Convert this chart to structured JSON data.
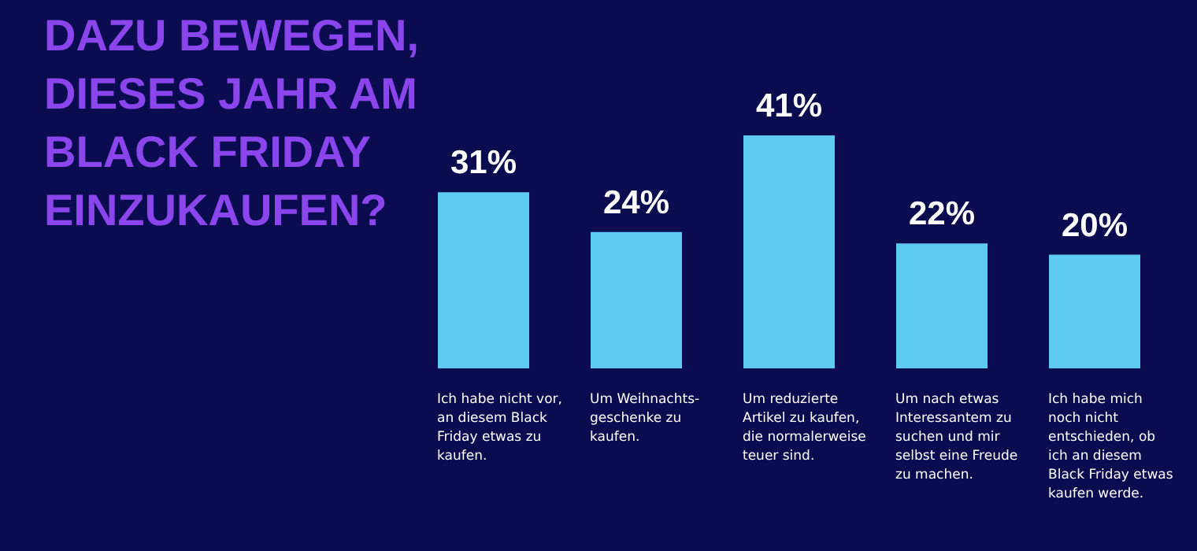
{
  "chart_data": {
    "type": "bar",
    "title": "DAZU BEWEGEN,\nDIESES JAHR AM\nBLACK FRIDAY\nEINZUKAUFEN?",
    "categories": [
      "Ich habe nicht vor,\nan diesem Black\nFriday etwas zu\nkaufen.",
      "Um Weihnachts-\ngeschenke zu\nkaufen.",
      "Um reduzierte\nArtikel zu kaufen,\ndie normalerweise\nteuer sind.",
      "Um nach etwas\nInteressantem zu\nsuchen und mir\nselbst eine Freude\nzu machen.",
      "Ich habe mich\nnoch nicht\nentschieden, ob\nich an diesem\nBlack Friday etwas\nkaufen werde."
    ],
    "values": [
      31,
      24,
      41,
      22,
      20
    ],
    "value_labels": [
      "31%",
      "24%",
      "41%",
      "22%",
      "20%"
    ],
    "color": "#5ecbf3"
  }
}
